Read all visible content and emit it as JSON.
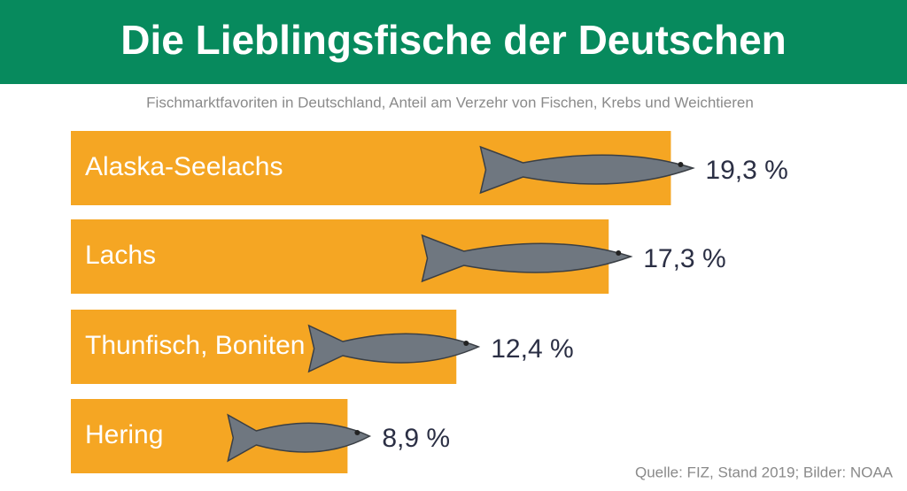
{
  "chart_data": {
    "type": "bar",
    "orientation": "horizontal",
    "title": "Die Lieblingsfische der Deutschen",
    "subtitle": "Fischmarktfavoriten in Deutschland, Anteil am Verzehr von Fischen, Krebs und Weichtieren",
    "source": "Quelle: FIZ, Stand 2019; Bilder: NOAA",
    "categories": [
      "Alaska-Seelachs",
      "Lachs",
      "Thunfisch, Boniten",
      "Hering"
    ],
    "values": [
      19.3,
      17.3,
      12.4,
      8.9
    ],
    "value_labels": [
      "19,3 %",
      "17,3 %",
      "12,4 %",
      "8,9 %"
    ],
    "color": "#f5a623"
  }
}
